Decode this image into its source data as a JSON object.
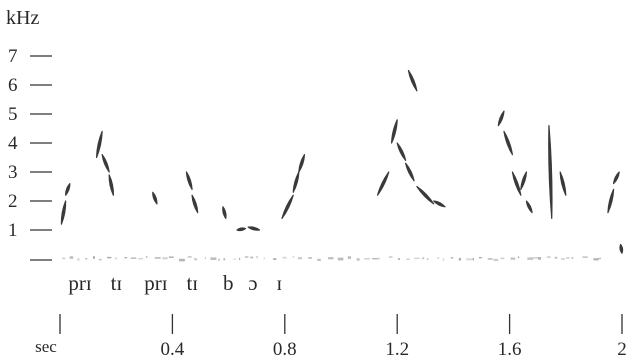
{
  "chart_data": {
    "type": "spectrogram",
    "y_unit": "kHz",
    "x_unit": "sec",
    "y_ticks": [
      "1",
      "2",
      "3",
      "4",
      "5",
      "6",
      "7"
    ],
    "x_ticks": [
      {
        "value": 0,
        "label": ""
      },
      {
        "value": 0.4,
        "label": "0.4"
      },
      {
        "value": 0.8,
        "label": "0.8"
      },
      {
        "value": 1.2,
        "label": "1.2"
      },
      {
        "value": 1.6,
        "label": "1.6"
      },
      {
        "value": 2.0,
        "label": "2"
      }
    ],
    "xlim": [
      0,
      2.0
    ],
    "ylim": [
      0,
      7
    ],
    "syllables": [
      {
        "text": "prɪ",
        "t": 0.03
      },
      {
        "text": "tɪ",
        "t": 0.18
      },
      {
        "text": "prɪ",
        "t": 0.3
      },
      {
        "text": "tɪ",
        "t": 0.45
      },
      {
        "text": "b",
        "t": 0.58
      },
      {
        "text": "ɔ",
        "t": 0.67
      },
      {
        "text": "ɪ",
        "t": 0.77
      }
    ],
    "traces": [
      {
        "t0": 0.005,
        "t1": 0.02,
        "f0": 1.2,
        "f1": 2.0
      },
      {
        "t0": 0.02,
        "t1": 0.035,
        "f0": 2.2,
        "f1": 2.6
      },
      {
        "t0": 0.13,
        "t1": 0.15,
        "f0": 3.5,
        "f1": 4.4
      },
      {
        "t0": 0.15,
        "t1": 0.175,
        "f0": 3.6,
        "f1": 3.0
      },
      {
        "t0": 0.175,
        "t1": 0.19,
        "f0": 2.9,
        "f1": 2.2
      },
      {
        "t0": 0.33,
        "t1": 0.345,
        "f0": 2.3,
        "f1": 1.9
      },
      {
        "t0": 0.45,
        "t1": 0.47,
        "f0": 3.0,
        "f1": 2.4
      },
      {
        "t0": 0.47,
        "t1": 0.49,
        "f0": 2.2,
        "f1": 1.6
      },
      {
        "t0": 0.58,
        "t1": 0.59,
        "f0": 1.8,
        "f1": 1.4
      },
      {
        "t0": 0.63,
        "t1": 0.66,
        "f0": 1.0,
        "f1": 1.05
      },
      {
        "t0": 0.67,
        "t1": 0.71,
        "f0": 1.1,
        "f1": 1.0
      },
      {
        "t0": 0.79,
        "t1": 0.83,
        "f0": 1.4,
        "f1": 2.2
      },
      {
        "t0": 0.83,
        "t1": 0.85,
        "f0": 2.3,
        "f1": 3.0
      },
      {
        "t0": 0.85,
        "t1": 0.87,
        "f0": 3.0,
        "f1": 3.6
      },
      {
        "t0": 1.13,
        "t1": 1.17,
        "f0": 2.2,
        "f1": 3.0
      },
      {
        "t0": 1.18,
        "t1": 1.2,
        "f0": 4.0,
        "f1": 4.8
      },
      {
        "t0": 1.2,
        "t1": 1.23,
        "f0": 4.0,
        "f1": 3.4
      },
      {
        "t0": 1.23,
        "t1": 1.26,
        "f0": 3.3,
        "f1": 2.7
      },
      {
        "t0": 1.24,
        "t1": 1.27,
        "f0": 6.5,
        "f1": 5.8
      },
      {
        "t0": 1.27,
        "t1": 1.33,
        "f0": 2.5,
        "f1": 1.9
      },
      {
        "t0": 1.33,
        "t1": 1.37,
        "f0": 2.0,
        "f1": 1.8
      },
      {
        "t0": 1.56,
        "t1": 1.58,
        "f0": 4.6,
        "f1": 5.1
      },
      {
        "t0": 1.58,
        "t1": 1.61,
        "f0": 4.4,
        "f1": 3.6
      },
      {
        "t0": 1.61,
        "t1": 1.64,
        "f0": 3.0,
        "f1": 2.2
      },
      {
        "t0": 1.64,
        "t1": 1.66,
        "f0": 2.4,
        "f1": 3.0
      },
      {
        "t0": 1.66,
        "t1": 1.68,
        "f0": 2.0,
        "f1": 1.6
      },
      {
        "t0": 1.74,
        "t1": 1.75,
        "f0": 4.6,
        "f1": 1.4
      },
      {
        "t0": 1.78,
        "t1": 1.8,
        "f0": 3.0,
        "f1": 2.2
      },
      {
        "t0": 1.95,
        "t1": 1.97,
        "f0": 1.6,
        "f1": 2.4
      },
      {
        "t0": 1.97,
        "t1": 1.99,
        "f0": 2.6,
        "f1": 3.0
      },
      {
        "t0": 1.995,
        "t1": 2.0,
        "f0": 0.5,
        "f1": 0.2
      }
    ],
    "grid": false,
    "colors": {
      "trace": "#1f1f1f",
      "axis": "#333333",
      "noise": "#9a9a9a"
    }
  }
}
